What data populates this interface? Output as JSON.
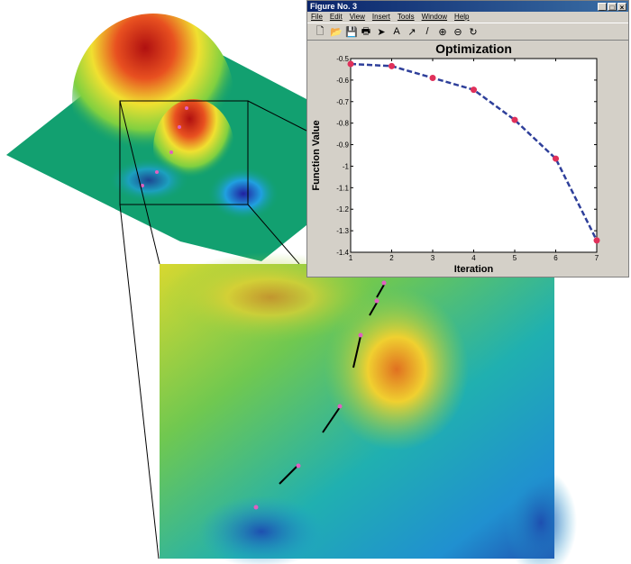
{
  "window": {
    "title": "Figure No. 3",
    "controls": [
      "_",
      "□",
      "×"
    ],
    "menu": [
      "File",
      "Edit",
      "View",
      "Insert",
      "Tools",
      "Window",
      "Help"
    ],
    "toolbar": [
      {
        "icon": "new-file-icon",
        "glyph": "🗋"
      },
      {
        "icon": "open-folder-icon",
        "glyph": "📂"
      },
      {
        "icon": "save-icon",
        "glyph": "💾"
      },
      {
        "icon": "print-icon",
        "glyph": "🖶"
      },
      {
        "icon": "pointer-icon",
        "glyph": "➤"
      },
      {
        "icon": "text-icon",
        "glyph": "A"
      },
      {
        "icon": "arrow-icon",
        "glyph": "↗"
      },
      {
        "icon": "line-icon",
        "glyph": "/"
      },
      {
        "icon": "zoom-in-icon",
        "glyph": "⊕"
      },
      {
        "icon": "zoom-out-icon",
        "glyph": "⊖"
      },
      {
        "icon": "rotate-icon",
        "glyph": "↻"
      }
    ]
  },
  "chart_data": {
    "type": "line",
    "title": "Optimization",
    "xlabel": "Iteration",
    "ylabel": "Function Value",
    "x": [
      1,
      2,
      3,
      4,
      5,
      6,
      7
    ],
    "y": [
      -0.525,
      -0.535,
      -0.59,
      -0.645,
      -0.785,
      -0.965,
      -1.345
    ],
    "xlim": [
      1,
      7
    ],
    "ylim": [
      -1.4,
      -0.5
    ],
    "xticks": [
      "1",
      "2",
      "3",
      "4",
      "5",
      "6",
      "7"
    ],
    "yticks": [
      "-0.5",
      "-0.6",
      "-0.7",
      "-0.8",
      "-0.9",
      "-1",
      "-1.1",
      "-1.2",
      "-1.3",
      "-1.4"
    ],
    "grid": false,
    "line_color": "#2e3f9a",
    "line_style": "dashed",
    "marker_color": "#e0305a"
  }
}
